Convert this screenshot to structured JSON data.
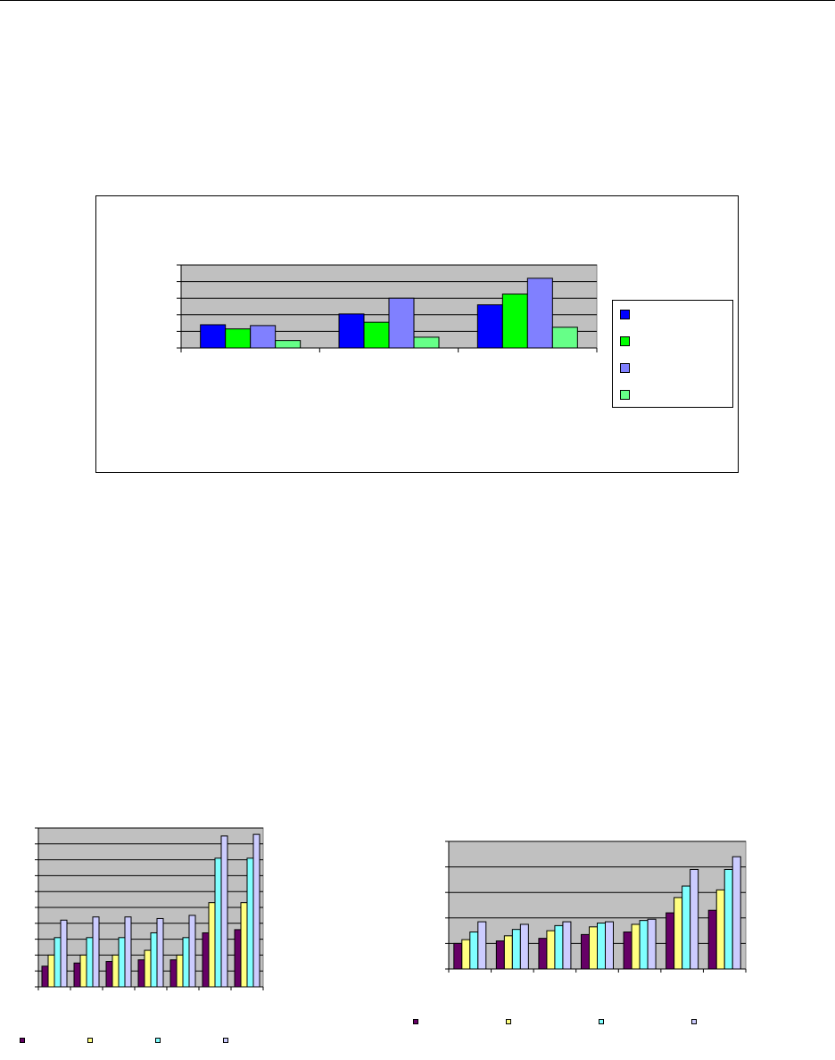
{
  "chart_data": [
    {
      "type": "bar",
      "title": "",
      "xlabel": "",
      "ylabel": "",
      "categories": [
        "",
        "",
        ""
      ],
      "ylim": [
        0,
        5
      ],
      "grid": true,
      "legend_position": "right",
      "series": [
        {
          "values": [
            1.4,
            2.05,
            2.6
          ],
          "color": "#0000ff"
        },
        {
          "values": [
            1.15,
            1.55,
            3.25
          ],
          "color": "#00ff00"
        },
        {
          "values": [
            1.35,
            3.0,
            4.2
          ],
          "color": "#8080ff"
        },
        {
          "values": [
            0.45,
            0.65,
            1.25
          ],
          "color": "#66ff88"
        }
      ]
    },
    {
      "type": "bar",
      "title": "",
      "xlabel": "",
      "ylabel": "",
      "categories": [
        "",
        "",
        "",
        "",
        "",
        "",
        ""
      ],
      "ylim": [
        0,
        10
      ],
      "grid": true,
      "legend_position": "bottom",
      "series": [
        {
          "values": [
            1.3,
            1.5,
            1.6,
            1.7,
            1.7,
            3.4,
            3.6
          ],
          "color": "#660066"
        },
        {
          "values": [
            2.0,
            2.0,
            2.0,
            2.3,
            2.0,
            5.3,
            5.3
          ],
          "color": "#ffff80"
        },
        {
          "values": [
            3.1,
            3.1,
            3.1,
            3.4,
            3.1,
            8.1,
            8.1
          ],
          "color": "#80ffff"
        },
        {
          "values": [
            4.2,
            4.4,
            4.4,
            4.3,
            4.5,
            9.5,
            9.6
          ],
          "color": "#ccccff"
        }
      ]
    },
    {
      "type": "bar",
      "title": "",
      "xlabel": "",
      "ylabel": "",
      "categories": [
        "",
        "",
        "",
        "",
        "",
        "",
        ""
      ],
      "ylim": [
        0,
        5
      ],
      "grid": true,
      "legend_position": "bottom",
      "series": [
        {
          "values": [
            1.0,
            1.1,
            1.2,
            1.35,
            1.45,
            2.2,
            2.3
          ],
          "color": "#660066"
        },
        {
          "values": [
            1.15,
            1.3,
            1.5,
            1.65,
            1.75,
            2.8,
            3.1
          ],
          "color": "#ffff80"
        },
        {
          "values": [
            1.45,
            1.55,
            1.7,
            1.8,
            1.9,
            3.25,
            3.9
          ],
          "color": "#80ffff"
        },
        {
          "values": [
            1.85,
            1.75,
            1.85,
            1.85,
            1.95,
            3.9,
            4.4
          ],
          "color": "#ccccff"
        }
      ]
    }
  ]
}
